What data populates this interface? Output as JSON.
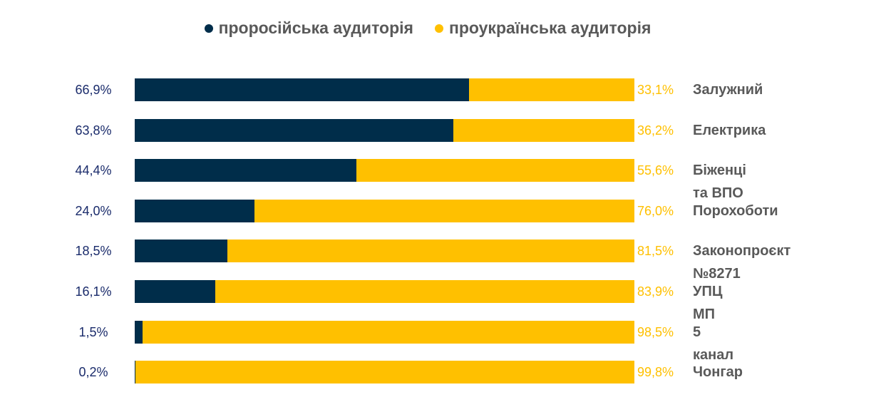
{
  "chart_data": {
    "type": "bar",
    "stacked": true,
    "orientation": "horizontal",
    "title": "",
    "legend_position": "top",
    "categories": [
      "Залужний",
      "Електрика",
      "Біженці та ВПО",
      "Порохоботи",
      "Законопроєкт №8271",
      "УПЦ МП",
      "5 канал",
      "Чонгар"
    ],
    "series": [
      {
        "name": "проросійська аудиторія",
        "color": "#002D4A",
        "values": [
          66.9,
          63.8,
          44.4,
          24.0,
          18.5,
          16.1,
          1.5,
          0.2
        ],
        "labels": [
          "66,9%",
          "63,8%",
          "44,4%",
          "24,0%",
          "18,5%",
          "16,1%",
          "1,5%",
          "0,2%"
        ]
      },
      {
        "name": "проукраїнська аудиторія",
        "color": "#FFC000",
        "values": [
          33.1,
          36.2,
          55.6,
          76.0,
          81.5,
          83.9,
          98.5,
          99.8
        ],
        "labels": [
          "33,1%",
          "36,2%",
          "55,6%",
          "76,0%",
          "81,5%",
          "83,9%",
          "98,5%",
          "99,8%"
        ]
      }
    ],
    "xlim": [
      0,
      100
    ]
  }
}
